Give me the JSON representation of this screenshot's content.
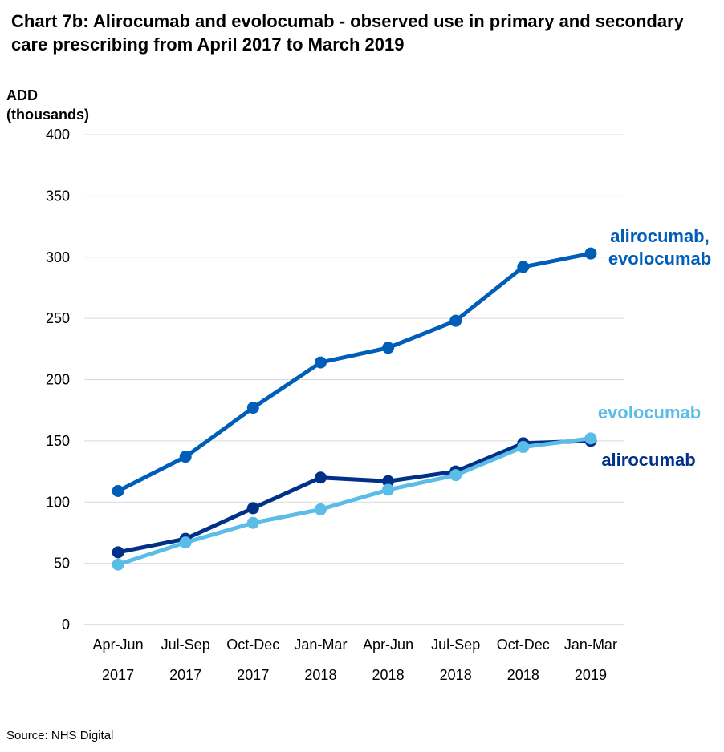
{
  "title": "Chart 7b: Alirocumab and evolocumab - observed use in primary and secondary care prescribing from April 2017 to March 2019",
  "ylabel_line1": "ADD",
  "ylabel_line2": "(thousands)",
  "source": "Source: NHS Digital",
  "chart_data": {
    "type": "line",
    "title": "Chart 7b: Alirocumab and evolocumab - observed use in primary and secondary care prescribing from April 2017 to March 2019",
    "xlabel": "",
    "ylabel": "ADD (thousands)",
    "ylim": [
      0,
      400
    ],
    "yticks": [
      0,
      50,
      100,
      150,
      200,
      250,
      300,
      350,
      400
    ],
    "grid": true,
    "categories": [
      [
        "Apr-Jun",
        "2017"
      ],
      [
        "Jul-Sep",
        "2017"
      ],
      [
        "Oct-Dec",
        "2017"
      ],
      [
        "Jan-Mar",
        "2018"
      ],
      [
        "Apr-Jun",
        "2018"
      ],
      [
        "Jul-Sep",
        "2018"
      ],
      [
        "Oct-Dec",
        "2018"
      ],
      [
        "Jan-Mar",
        "2019"
      ]
    ],
    "series": [
      {
        "name": "alirocumab, evolocumab",
        "label_lines": [
          "alirocumab,",
          "evolocumab"
        ],
        "color": "#005EB8",
        "values": [
          109,
          137,
          177,
          214,
          226,
          248,
          292,
          303
        ]
      },
      {
        "name": "alirocumab",
        "label_lines": [
          "alirocumab"
        ],
        "color": "#003087",
        "values": [
          59,
          70,
          95,
          120,
          117,
          125,
          148,
          150
        ]
      },
      {
        "name": "evolocumab",
        "label_lines": [
          "evolocumab"
        ],
        "color": "#5BBCE8",
        "values": [
          49,
          67,
          83,
          94,
          110,
          122,
          145,
          152
        ]
      }
    ]
  }
}
